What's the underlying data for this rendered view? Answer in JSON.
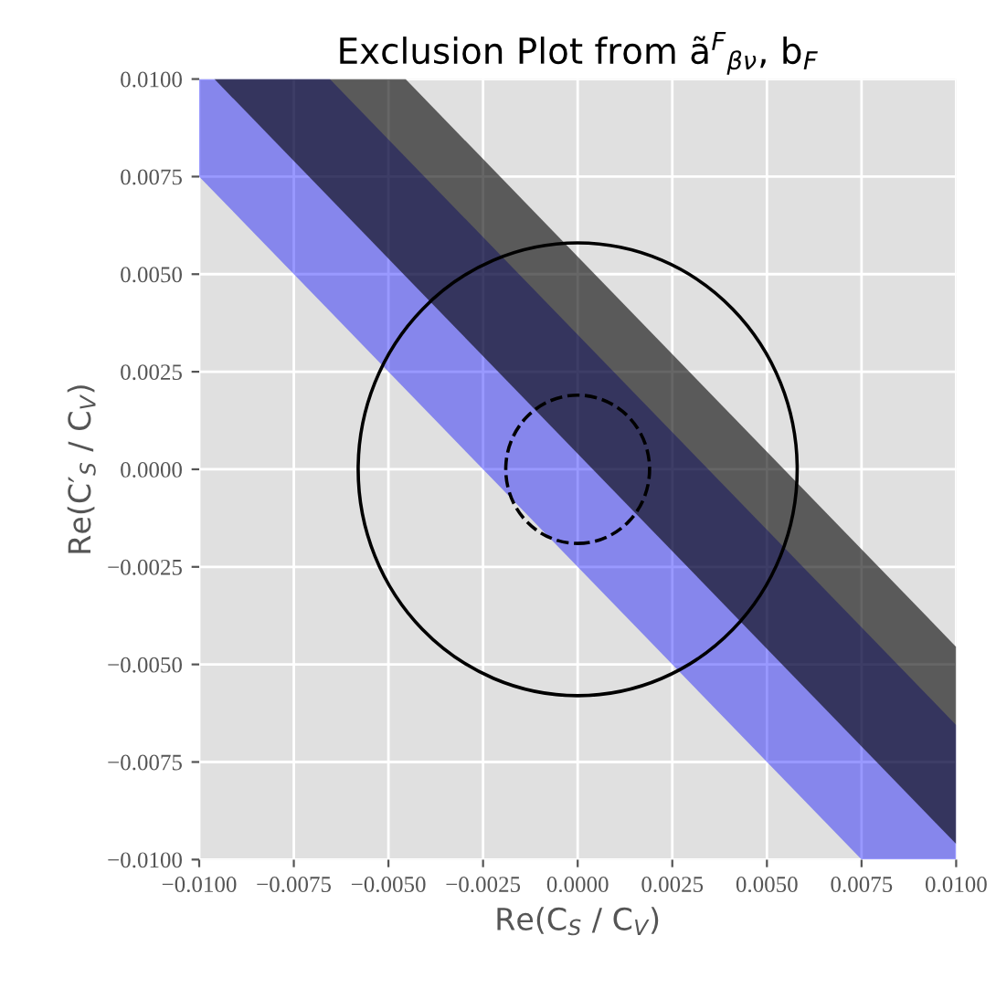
{
  "chart_data": {
    "type": "line",
    "title": "Exclusion Plot from ã$^{F}$$_{βν}$, b$_{F}$",
    "xlabel": "Re(C$_{S}$ / C$_{V}$)",
    "ylabel": "Re(C′$_{S}$ / C$_{V}$)",
    "xlim": [
      -0.01,
      0.01
    ],
    "ylim": [
      -0.01,
      0.01
    ],
    "xticks": [
      {
        "value": -0.01,
        "label": "−0.0100"
      },
      {
        "value": -0.0075,
        "label": "−0.0075"
      },
      {
        "value": -0.005,
        "label": "−0.0050"
      },
      {
        "value": -0.0025,
        "label": "−0.0025"
      },
      {
        "value": 0,
        "label": "0.0000"
      },
      {
        "value": 0.0025,
        "label": "0.0025"
      },
      {
        "value": 0.005,
        "label": "0.0050"
      },
      {
        "value": 0.0075,
        "label": "0.0075"
      },
      {
        "value": 0.01,
        "label": "0.0100"
      }
    ],
    "yticks": [
      {
        "value": -0.01,
        "label": "−0.0100"
      },
      {
        "value": -0.0075,
        "label": "−0.0075"
      },
      {
        "value": -0.005,
        "label": "−0.0050"
      },
      {
        "value": -0.0025,
        "label": "−0.0025"
      },
      {
        "value": 0,
        "label": "0.0000"
      },
      {
        "value": 0.0025,
        "label": "0.0025"
      },
      {
        "value": 0.005,
        "label": "0.0050"
      },
      {
        "value": 0.0075,
        "label": "0.0075"
      },
      {
        "value": 0.01,
        "label": "0.0100"
      }
    ],
    "grid": true,
    "series": [
      {
        "color": "#0000ff",
        "x": [
          -0.01,
          -0.00655,
          0.0075,
          0.01
        ],
        "values": [
          null,
          null,
          null,
          null
        ],
        "lower": [
          0.0075,
          0.00405,
          -0.01,
          -0.01
        ],
        "upper": [
          0.01,
          0.01,
          -0.00405,
          -0.00655
        ]
      },
      {
        "color": "#000000",
        "x": [
          -0.0096,
          -0.00455,
          0.01
        ],
        "values": [
          null,
          null,
          null
        ],
        "lower": [
          0.01,
          0.00495,
          -0.0096
        ],
        "upper": [
          0.01,
          0.01,
          -0.00455
        ]
      }
    ]
  }
}
